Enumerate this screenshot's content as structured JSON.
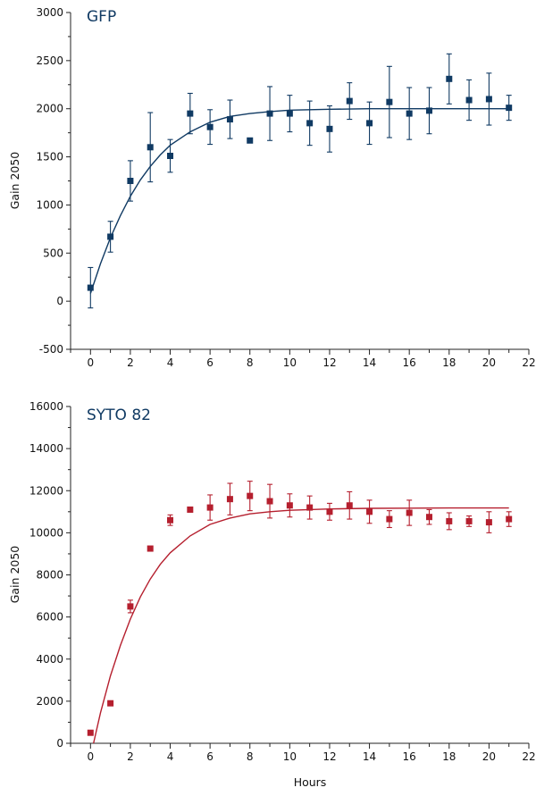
{
  "chart_data": [
    {
      "type": "scatter",
      "title": "GFP",
      "xlabel": "",
      "ylabel": "Gain 2050",
      "xlim": [
        -1,
        22
      ],
      "ylim": [
        -500,
        3000
      ],
      "xticks": [
        0,
        2,
        4,
        6,
        8,
        10,
        12,
        14,
        16,
        18,
        20,
        22
      ],
      "yticks": [
        -500,
        0,
        500,
        1000,
        1500,
        2000,
        2500,
        3000
      ],
      "color": "#103a63",
      "grid": false,
      "points": [
        {
          "x": 0,
          "y": 140,
          "err": 210
        },
        {
          "x": 1,
          "y": 670,
          "err": 160
        },
        {
          "x": 2,
          "y": 1250,
          "err": 210
        },
        {
          "x": 3,
          "y": 1600,
          "err": 360
        },
        {
          "x": 4,
          "y": 1510,
          "err": 170
        },
        {
          "x": 5,
          "y": 1950,
          "err": 210
        },
        {
          "x": 6,
          "y": 1810,
          "err": 180
        },
        {
          "x": 7,
          "y": 1890,
          "err": 200
        },
        {
          "x": 8,
          "y": 1670,
          "err": 0
        },
        {
          "x": 9,
          "y": 1950,
          "err": 280
        },
        {
          "x": 10,
          "y": 1950,
          "err": 190
        },
        {
          "x": 11,
          "y": 1850,
          "err": 230
        },
        {
          "x": 12,
          "y": 1790,
          "err": 240
        },
        {
          "x": 13,
          "y": 2080,
          "err": 190
        },
        {
          "x": 14,
          "y": 1850,
          "err": 220
        },
        {
          "x": 15,
          "y": 2070,
          "err": 370
        },
        {
          "x": 16,
          "y": 1950,
          "err": 270
        },
        {
          "x": 17,
          "y": 1980,
          "err": 240
        },
        {
          "x": 18,
          "y": 2310,
          "err": 260
        },
        {
          "x": 19,
          "y": 2090,
          "err": 210
        },
        {
          "x": 20,
          "y": 2100,
          "err": 270
        },
        {
          "x": 21,
          "y": 2010,
          "err": 130
        }
      ],
      "fit_curve": [
        {
          "x": 0,
          "y": 80
        },
        {
          "x": 0.5,
          "y": 390
        },
        {
          "x": 1,
          "y": 660
        },
        {
          "x": 1.5,
          "y": 890
        },
        {
          "x": 2,
          "y": 1090
        },
        {
          "x": 2.5,
          "y": 1260
        },
        {
          "x": 3,
          "y": 1400
        },
        {
          "x": 3.5,
          "y": 1520
        },
        {
          "x": 4,
          "y": 1620
        },
        {
          "x": 5,
          "y": 1760
        },
        {
          "x": 6,
          "y": 1860
        },
        {
          "x": 7,
          "y": 1920
        },
        {
          "x": 8,
          "y": 1950
        },
        {
          "x": 9,
          "y": 1970
        },
        {
          "x": 10,
          "y": 1985
        },
        {
          "x": 12,
          "y": 1995
        },
        {
          "x": 14,
          "y": 2000
        },
        {
          "x": 16,
          "y": 2000
        },
        {
          "x": 18,
          "y": 2000
        },
        {
          "x": 21,
          "y": 2000
        }
      ]
    },
    {
      "type": "scatter",
      "title": "SYTO 82",
      "xlabel": "Hours",
      "ylabel": "Gain 2050",
      "xlim": [
        -1,
        22
      ],
      "ylim": [
        0,
        16000
      ],
      "xticks": [
        0,
        2,
        4,
        6,
        8,
        10,
        12,
        14,
        16,
        18,
        20,
        22
      ],
      "yticks": [
        0,
        2000,
        4000,
        6000,
        8000,
        10000,
        12000,
        14000,
        16000
      ],
      "color": "#b51f2e",
      "grid": false,
      "points": [
        {
          "x": 0,
          "y": 500,
          "err": 0
        },
        {
          "x": 1,
          "y": 1900,
          "err": 0
        },
        {
          "x": 2,
          "y": 6500,
          "err": 300
        },
        {
          "x": 3,
          "y": 9250,
          "err": 0
        },
        {
          "x": 4,
          "y": 10600,
          "err": 250
        },
        {
          "x": 5,
          "y": 11100,
          "err": 0
        },
        {
          "x": 6,
          "y": 11200,
          "err": 600
        },
        {
          "x": 7,
          "y": 11600,
          "err": 750
        },
        {
          "x": 8,
          "y": 11750,
          "err": 700
        },
        {
          "x": 9,
          "y": 11500,
          "err": 800
        },
        {
          "x": 10,
          "y": 11300,
          "err": 550
        },
        {
          "x": 11,
          "y": 11200,
          "err": 550
        },
        {
          "x": 12,
          "y": 11000,
          "err": 400
        },
        {
          "x": 13,
          "y": 11300,
          "err": 650
        },
        {
          "x": 14,
          "y": 11000,
          "err": 550
        },
        {
          "x": 15,
          "y": 10650,
          "err": 400
        },
        {
          "x": 16,
          "y": 10950,
          "err": 600
        },
        {
          "x": 17,
          "y": 10750,
          "err": 350
        },
        {
          "x": 18,
          "y": 10550,
          "err": 400
        },
        {
          "x": 19,
          "y": 10550,
          "err": 250
        },
        {
          "x": 20,
          "y": 10500,
          "err": 500
        },
        {
          "x": 21,
          "y": 10650,
          "err": 350
        }
      ],
      "fit_curve": [
        {
          "x": 0.15,
          "y": 0
        },
        {
          "x": 0.5,
          "y": 1450
        },
        {
          "x": 1,
          "y": 3200
        },
        {
          "x": 1.5,
          "y": 4650
        },
        {
          "x": 2,
          "y": 5900
        },
        {
          "x": 2.5,
          "y": 6950
        },
        {
          "x": 3,
          "y": 7800
        },
        {
          "x": 3.5,
          "y": 8500
        },
        {
          "x": 4,
          "y": 9050
        },
        {
          "x": 5,
          "y": 9850
        },
        {
          "x": 6,
          "y": 10400
        },
        {
          "x": 7,
          "y": 10700
        },
        {
          "x": 8,
          "y": 10900
        },
        {
          "x": 9,
          "y": 11000
        },
        {
          "x": 10,
          "y": 11070
        },
        {
          "x": 12,
          "y": 11130
        },
        {
          "x": 14,
          "y": 11160
        },
        {
          "x": 16,
          "y": 11170
        },
        {
          "x": 18,
          "y": 11180
        },
        {
          "x": 21,
          "y": 11180
        }
      ]
    }
  ]
}
